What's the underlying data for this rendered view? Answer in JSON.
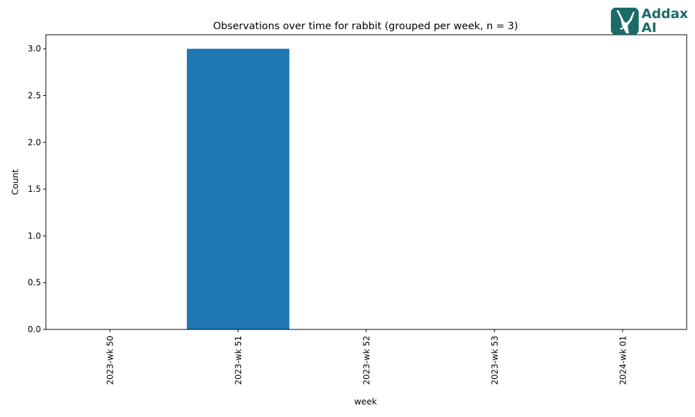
{
  "chart_data": {
    "type": "bar",
    "title": "Observations over time for rabbit (grouped per week, n = 3)",
    "xlabel": "week",
    "ylabel": "Count",
    "categories": [
      "2023-wk 50",
      "2023-wk 51",
      "2023-wk 52",
      "2023-wk 53",
      "2024-wk 01"
    ],
    "values": [
      0,
      3,
      0,
      0,
      0
    ],
    "ylim": [
      0,
      3.15
    ],
    "yticks": [
      0.0,
      0.5,
      1.0,
      1.5,
      2.0,
      2.5,
      3.0
    ],
    "ytick_labels": [
      "0.0",
      "0.5",
      "1.0",
      "1.5",
      "2.0",
      "2.5",
      "3.0"
    ],
    "grid": false,
    "bar_color": "#1f77b4"
  },
  "logo": {
    "line1": "Addax",
    "line2": "AI",
    "color": "#1b6b68",
    "icon": "addax-antelope-icon"
  }
}
